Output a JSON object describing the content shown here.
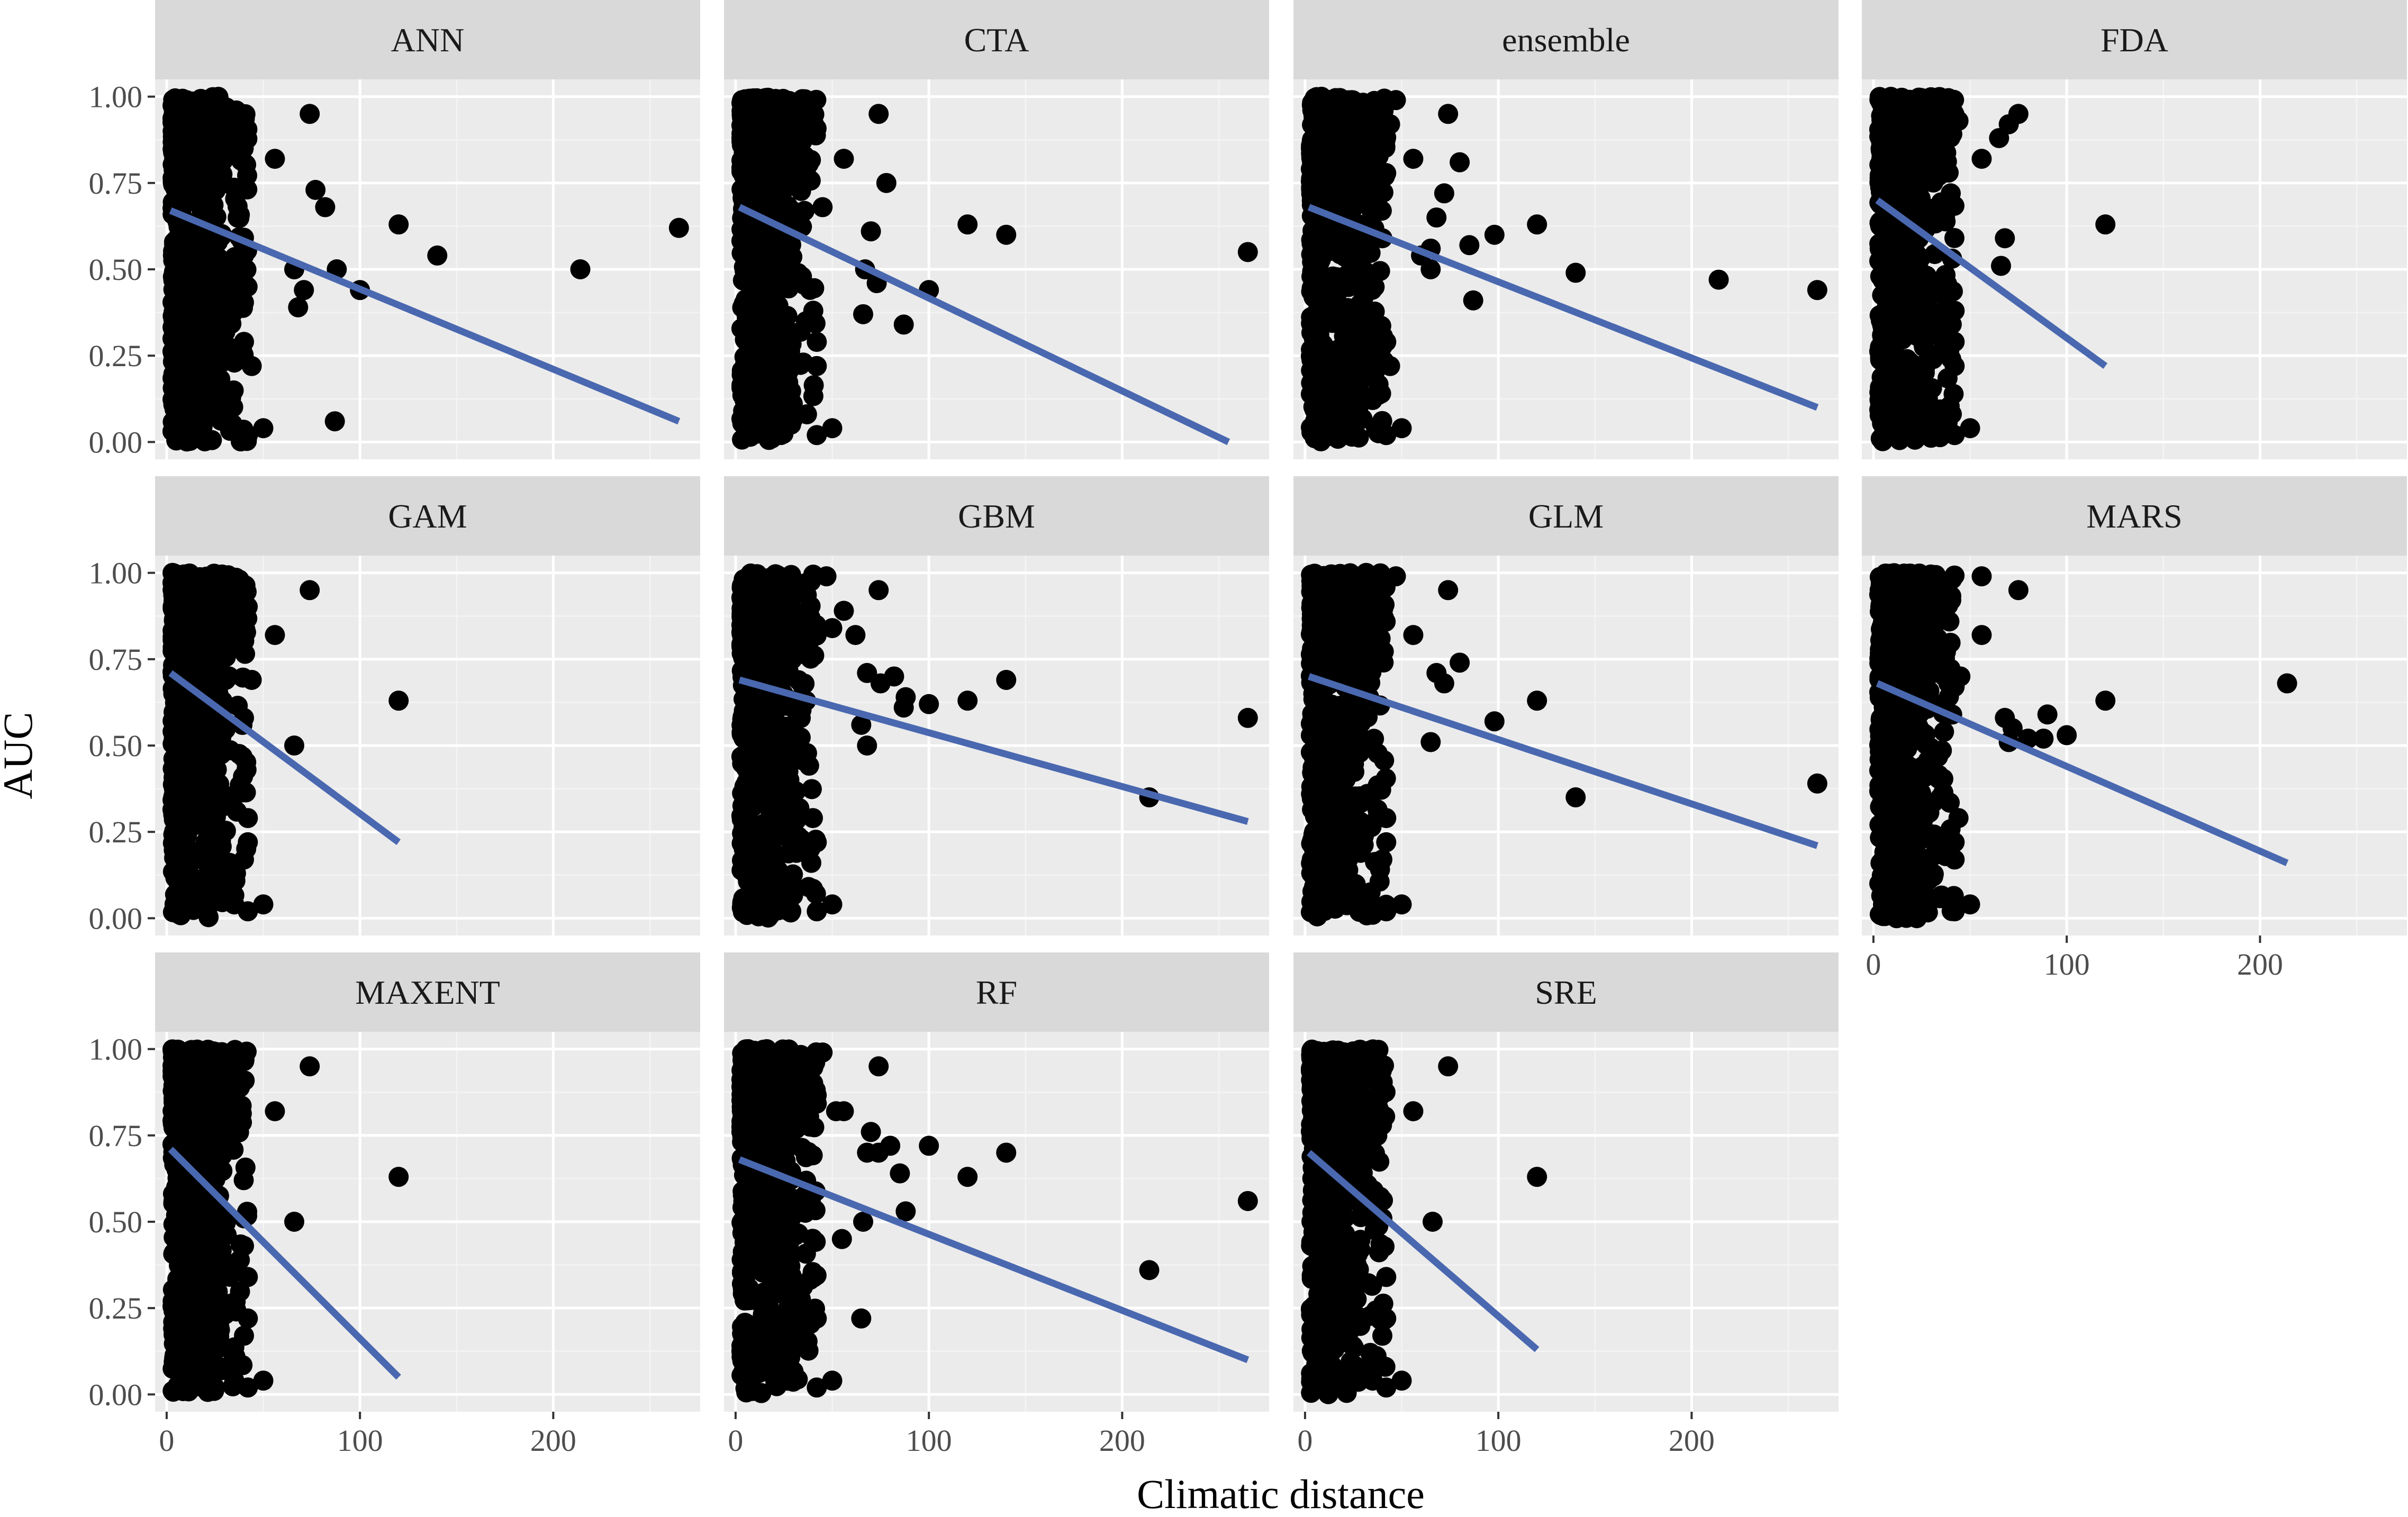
{
  "chart_data": {
    "type": "scatter",
    "title": "",
    "xlabel": "Climatic distance",
    "ylabel": "AUC",
    "xlim": [
      -6,
      276
    ],
    "ylim": [
      -0.05,
      1.05
    ],
    "x_ticks": [
      0,
      100,
      200
    ],
    "x_tick_labels": [
      "0",
      "100",
      "200"
    ],
    "y_ticks": [
      0,
      0.25,
      0.5,
      0.75,
      1
    ],
    "y_tick_labels": [
      "0.00",
      "0.25",
      "0.50",
      "0.75",
      "1.00"
    ],
    "point_color": "#000000",
    "line_color": "#4a68b0",
    "grid": true,
    "facets": [
      {
        "label": "ANN",
        "points": [
          [
            74,
            0.95
          ],
          [
            56,
            0.82
          ],
          [
            77,
            0.73
          ],
          [
            82,
            0.68
          ],
          [
            66,
            0.5
          ],
          [
            71,
            0.44
          ],
          [
            68,
            0.39
          ],
          [
            88,
            0.5
          ],
          [
            100,
            0.44
          ],
          [
            120,
            0.63
          ],
          [
            140,
            0.54
          ],
          [
            214,
            0.5
          ],
          [
            265,
            0.62
          ],
          [
            87,
            0.06
          ],
          [
            50,
            0.04
          ],
          [
            42,
            0.02
          ],
          [
            40,
            0.29
          ],
          [
            38,
            0.48
          ],
          [
            40,
            0.54
          ],
          [
            44,
            0.22
          ],
          [
            35,
            0.23
          ],
          [
            36,
            0.96
          ]
        ],
        "fit": [
          [
            2,
            0.67
          ],
          [
            265,
            0.06
          ]
        ]
      },
      {
        "label": "CTA",
        "points": [
          [
            74,
            0.95
          ],
          [
            56,
            0.82
          ],
          [
            78,
            0.75
          ],
          [
            45,
            0.68
          ],
          [
            70,
            0.61
          ],
          [
            67,
            0.5
          ],
          [
            73,
            0.46
          ],
          [
            100,
            0.44
          ],
          [
            120,
            0.63
          ],
          [
            140,
            0.6
          ],
          [
            66,
            0.37
          ],
          [
            87,
            0.34
          ],
          [
            265,
            0.55
          ],
          [
            50,
            0.04
          ],
          [
            42,
            0.02
          ],
          [
            42,
            0.29
          ],
          [
            42,
            0.22
          ],
          [
            35,
            0.23
          ]
        ],
        "fit": [
          [
            2,
            0.68
          ],
          [
            255,
            0.0
          ]
        ]
      },
      {
        "label": "ensemble",
        "points": [
          [
            74,
            0.95
          ],
          [
            47,
            0.99
          ],
          [
            56,
            0.82
          ],
          [
            80,
            0.81
          ],
          [
            72,
            0.72
          ],
          [
            68,
            0.65
          ],
          [
            65,
            0.56
          ],
          [
            60,
            0.54
          ],
          [
            85,
            0.57
          ],
          [
            98,
            0.6
          ],
          [
            120,
            0.63
          ],
          [
            140,
            0.49
          ],
          [
            214,
            0.47
          ],
          [
            265,
            0.44
          ],
          [
            65,
            0.5
          ],
          [
            87,
            0.41
          ],
          [
            50,
            0.04
          ],
          [
            42,
            0.02
          ],
          [
            42,
            0.29
          ],
          [
            44,
            0.22
          ],
          [
            40,
            0.59
          ],
          [
            44,
            0.92
          ]
        ],
        "fit": [
          [
            2,
            0.68
          ],
          [
            265,
            0.1
          ]
        ]
      },
      {
        "label": "FDA",
        "points": [
          [
            75,
            0.95
          ],
          [
            70,
            0.92
          ],
          [
            65,
            0.88
          ],
          [
            56,
            0.82
          ],
          [
            44,
            0.93
          ],
          [
            68,
            0.59
          ],
          [
            66,
            0.51
          ],
          [
            120,
            0.63
          ],
          [
            40,
            0.72
          ],
          [
            42,
            0.38
          ],
          [
            42,
            0.29
          ],
          [
            42,
            0.22
          ],
          [
            50,
            0.04
          ],
          [
            42,
            0.02
          ],
          [
            35,
            0.05
          ]
        ],
        "fit": [
          [
            2,
            0.7
          ],
          [
            120,
            0.22
          ]
        ]
      },
      {
        "label": "GAM",
        "points": [
          [
            74,
            0.95
          ],
          [
            56,
            0.82
          ],
          [
            44,
            0.69
          ],
          [
            120,
            0.63
          ],
          [
            66,
            0.5
          ],
          [
            40,
            0.58
          ],
          [
            42,
            0.29
          ],
          [
            42,
            0.22
          ],
          [
            40,
            0.17
          ],
          [
            50,
            0.04
          ],
          [
            42,
            0.02
          ],
          [
            35,
            0.04
          ]
        ],
        "fit": [
          [
            2,
            0.71
          ],
          [
            120,
            0.22
          ]
        ]
      },
      {
        "label": "GBM",
        "points": [
          [
            74,
            0.95
          ],
          [
            47,
            0.99
          ],
          [
            56,
            0.89
          ],
          [
            62,
            0.82
          ],
          [
            50,
            0.84
          ],
          [
            68,
            0.71
          ],
          [
            75,
            0.68
          ],
          [
            82,
            0.7
          ],
          [
            88,
            0.64
          ],
          [
            87,
            0.61
          ],
          [
            100,
            0.62
          ],
          [
            120,
            0.63
          ],
          [
            140,
            0.69
          ],
          [
            65,
            0.56
          ],
          [
            68,
            0.5
          ],
          [
            214,
            0.35
          ],
          [
            265,
            0.58
          ],
          [
            42,
            0.22
          ],
          [
            50,
            0.04
          ],
          [
            42,
            0.02
          ],
          [
            40,
            0.29
          ]
        ],
        "fit": [
          [
            2,
            0.69
          ],
          [
            265,
            0.28
          ]
        ]
      },
      {
        "label": "GLM",
        "points": [
          [
            74,
            0.95
          ],
          [
            47,
            0.99
          ],
          [
            56,
            0.82
          ],
          [
            68,
            0.71
          ],
          [
            72,
            0.68
          ],
          [
            80,
            0.74
          ],
          [
            40,
            0.75
          ],
          [
            98,
            0.57
          ],
          [
            120,
            0.63
          ],
          [
            140,
            0.35
          ],
          [
            265,
            0.39
          ],
          [
            65,
            0.51
          ],
          [
            42,
            0.29
          ],
          [
            42,
            0.22
          ],
          [
            40,
            0.17
          ],
          [
            50,
            0.04
          ],
          [
            42,
            0.02
          ],
          [
            35,
            0.04
          ]
        ],
        "fit": [
          [
            2,
            0.7
          ],
          [
            265,
            0.21
          ]
        ]
      },
      {
        "label": "MARS",
        "points": [
          [
            75,
            0.95
          ],
          [
            56,
            0.99
          ],
          [
            56,
            0.82
          ],
          [
            36,
            0.96
          ],
          [
            45,
            0.7
          ],
          [
            42,
            0.67
          ],
          [
            68,
            0.58
          ],
          [
            72,
            0.55
          ],
          [
            80,
            0.52
          ],
          [
            90,
            0.59
          ],
          [
            88,
            0.52
          ],
          [
            100,
            0.53
          ],
          [
            120,
            0.63
          ],
          [
            70,
            0.51
          ],
          [
            214,
            0.68
          ],
          [
            44,
            0.29
          ],
          [
            42,
            0.22
          ],
          [
            42,
            0.17
          ],
          [
            50,
            0.04
          ],
          [
            42,
            0.02
          ]
        ],
        "fit": [
          [
            2,
            0.68
          ],
          [
            214,
            0.16
          ]
        ]
      },
      {
        "label": "MAXENT",
        "points": [
          [
            74,
            0.95
          ],
          [
            56,
            0.82
          ],
          [
            36,
            0.96
          ],
          [
            120,
            0.63
          ],
          [
            66,
            0.5
          ],
          [
            40,
            0.51
          ],
          [
            40,
            0.43
          ],
          [
            42,
            0.34
          ],
          [
            42,
            0.22
          ],
          [
            40,
            0.17
          ],
          [
            50,
            0.04
          ],
          [
            42,
            0.02
          ],
          [
            35,
            0.04
          ]
        ],
        "fit": [
          [
            2,
            0.71
          ],
          [
            120,
            0.05
          ]
        ]
      },
      {
        "label": "RF",
        "points": [
          [
            74,
            0.95
          ],
          [
            45,
            0.99
          ],
          [
            56,
            0.82
          ],
          [
            52,
            0.82
          ],
          [
            70,
            0.76
          ],
          [
            68,
            0.7
          ],
          [
            74,
            0.7
          ],
          [
            80,
            0.72
          ],
          [
            85,
            0.64
          ],
          [
            88,
            0.53
          ],
          [
            100,
            0.72
          ],
          [
            120,
            0.63
          ],
          [
            140,
            0.7
          ],
          [
            66,
            0.5
          ],
          [
            55,
            0.45
          ],
          [
            214,
            0.36
          ],
          [
            265,
            0.56
          ],
          [
            65,
            0.22
          ],
          [
            42,
            0.22
          ],
          [
            50,
            0.04
          ],
          [
            42,
            0.02
          ]
        ],
        "fit": [
          [
            2,
            0.68
          ],
          [
            265,
            0.1
          ]
        ]
      },
      {
        "label": "SRE",
        "points": [
          [
            74,
            0.95
          ],
          [
            56,
            0.82
          ],
          [
            36,
            0.96
          ],
          [
            120,
            0.63
          ],
          [
            66,
            0.5
          ],
          [
            40,
            0.51
          ],
          [
            40,
            0.43
          ],
          [
            42,
            0.34
          ],
          [
            42,
            0.22
          ],
          [
            40,
            0.17
          ],
          [
            50,
            0.04
          ],
          [
            42,
            0.02
          ],
          [
            35,
            0.04
          ]
        ],
        "fit": [
          [
            2,
            0.7
          ],
          [
            120,
            0.13
          ]
        ]
      }
    ]
  }
}
